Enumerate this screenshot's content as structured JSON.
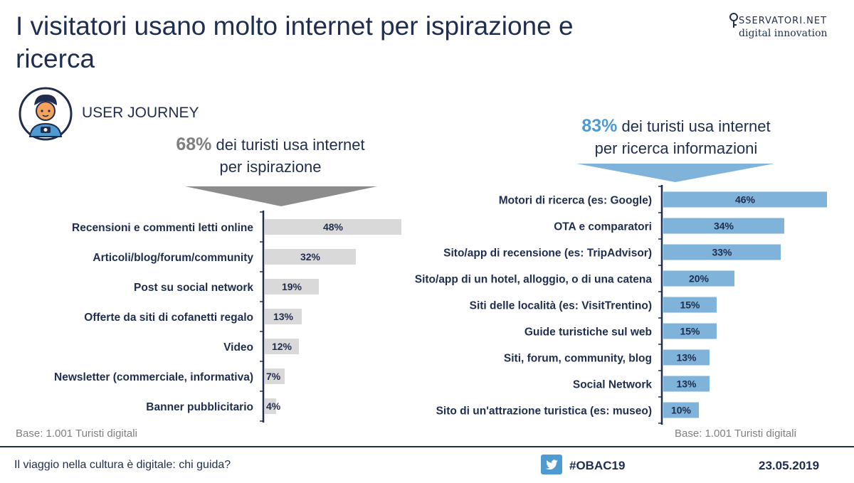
{
  "title": "I visitatori usano molto internet per ispirazione e ricerca",
  "logo": {
    "top": "SSERVATORI.NET",
    "bottom": "digital innovation"
  },
  "user_journey_label": "USER JOURNEY",
  "left_headline": {
    "pct": "68%",
    "text1": " dei turisti usa internet",
    "text2": "per ispirazione"
  },
  "right_headline": {
    "pct": "83%",
    "text1": " dei turisti usa internet",
    "text2": "per ricerca informazioni"
  },
  "base_left": "Base: 1.001 Turisti digitali",
  "base_right": "Base: 1.001 Turisti digitali",
  "footer": {
    "text": "Il viaggio nella cultura è digitale: chi guida?",
    "hashtag": "#OBAC19",
    "date": "23.05.2019"
  },
  "colors": {
    "left_bar": "#d9d9d9",
    "right_bar": "#7fb3d9",
    "arrow_left": "#8c8c8c",
    "arrow_right": "#7fb3d9",
    "axis": "#1f2d4e"
  },
  "chart_data": [
    {
      "type": "bar",
      "orientation": "horizontal",
      "title": "68% dei turisti usa internet per ispirazione",
      "categories": [
        "Recensioni e commenti letti online",
        "Articoli/blog/forum/community",
        "Post su social network",
        "Offerte da siti di cofanetti regalo",
        "Video",
        "Newsletter (commerciale, informativa)",
        "Banner pubblicitario"
      ],
      "values": [
        48,
        32,
        19,
        13,
        12,
        7,
        4
      ],
      "labels": [
        "48%",
        "32%",
        "19%",
        "13%",
        "12%",
        "7%",
        "4%"
      ],
      "xlim": [
        0,
        50
      ]
    },
    {
      "type": "bar",
      "orientation": "horizontal",
      "title": "83% dei turisti usa internet per ricerca informazioni",
      "categories": [
        "Motori di ricerca (es: Google)",
        "OTA e comparatori",
        "Sito/app di recensione (es: TripAdvisor)",
        "Sito/app di un hotel, alloggio, o di una catena",
        "Siti delle località (es: VisitTrentino)",
        "Guide turistiche sul web",
        "Siti, forum, community, blog",
        "Social Network",
        "Sito di un'attrazione turistica (es: museo)"
      ],
      "values": [
        46,
        34,
        33,
        20,
        15,
        15,
        13,
        13,
        10
      ],
      "labels": [
        "46%",
        "34%",
        "33%",
        "20%",
        "15%",
        "15%",
        "13%",
        "13%",
        "10%"
      ],
      "xlim": [
        0,
        50
      ]
    }
  ]
}
